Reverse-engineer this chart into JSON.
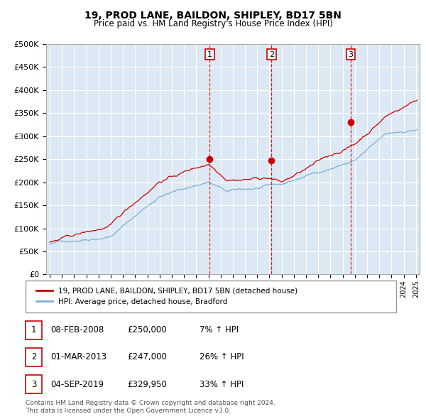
{
  "title1": "19, PROD LANE, BAILDON, SHIPLEY, BD17 5BN",
  "title2": "Price paid vs. HM Land Registry's House Price Index (HPI)",
  "ytick_vals": [
    0,
    50000,
    100000,
    150000,
    200000,
    250000,
    300000,
    350000,
    400000,
    450000,
    500000
  ],
  "xlim_start": 1994.7,
  "xlim_end": 2025.3,
  "ylim_min": 0,
  "ylim_max": 500000,
  "bg_color": "#dce9f5",
  "grid_color": "#ffffff",
  "sale_dates": [
    2008.1,
    2013.17,
    2019.67
  ],
  "sale_prices": [
    250000,
    247000,
    329950
  ],
  "sale_labels": [
    "1",
    "2",
    "3"
  ],
  "vline_color": "#cc0000",
  "sale_marker_color": "#cc0000",
  "hpi_line_color": "#7bafd4",
  "price_line_color": "#cc0000",
  "legend_label_price": "19, PROD LANE, BAILDON, SHIPLEY, BD17 5BN (detached house)",
  "legend_label_hpi": "HPI: Average price, detached house, Bradford",
  "table_rows": [
    [
      "1",
      "08-FEB-2008",
      "£250,000",
      "7% ↑ HPI"
    ],
    [
      "2",
      "01-MAR-2013",
      "£247,000",
      "26% ↑ HPI"
    ],
    [
      "3",
      "04-SEP-2019",
      "£329,950",
      "33% ↑ HPI"
    ]
  ],
  "footer": "Contains HM Land Registry data © Crown copyright and database right 2024.\nThis data is licensed under the Open Government Licence v3.0."
}
